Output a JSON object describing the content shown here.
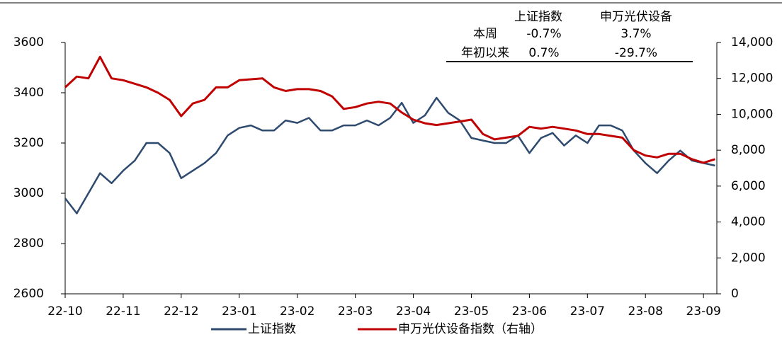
{
  "chart_data": {
    "type": "line",
    "xlim": [
      0,
      11.23
    ],
    "xticks": [
      {
        "value": 0,
        "label": "22-10"
      },
      {
        "value": 1,
        "label": "22-11"
      },
      {
        "value": 2,
        "label": "22-12"
      },
      {
        "value": 3,
        "label": "23-01"
      },
      {
        "value": 4,
        "label": "23-02"
      },
      {
        "value": 5,
        "label": "23-03"
      },
      {
        "value": 6,
        "label": "23-04"
      },
      {
        "value": 7,
        "label": "23-05"
      },
      {
        "value": 8,
        "label": "23-06"
      },
      {
        "value": 9,
        "label": "23-07"
      },
      {
        "value": 10,
        "label": "23-08"
      },
      {
        "value": 11,
        "label": "23-09"
      }
    ],
    "ylim": [
      2600,
      3600
    ],
    "yticks": [
      2600,
      2800,
      3000,
      3200,
      3400,
      3600
    ],
    "y2lim": [
      0,
      14000
    ],
    "y2ticks": [
      0,
      {
        "value": 2000,
        "label": "2,000"
      },
      {
        "value": 4000,
        "label": "4,000"
      },
      {
        "value": 6000,
        "label": "6,000"
      },
      {
        "value": 8000,
        "label": "8,000"
      },
      {
        "value": 10000,
        "label": "10,000"
      },
      {
        "value": 12000,
        "label": "12,000"
      },
      {
        "value": 14000,
        "label": "14,000"
      }
    ],
    "x": [
      0,
      0.2,
      0.4,
      0.6,
      0.8,
      1.0,
      1.2,
      1.4,
      1.6,
      1.8,
      2.0,
      2.2,
      2.4,
      2.6,
      2.8,
      3.0,
      3.2,
      3.4,
      3.6,
      3.8,
      4.0,
      4.2,
      4.4,
      4.6,
      4.8,
      5.0,
      5.2,
      5.4,
      5.6,
      5.8,
      6.0,
      6.2,
      6.4,
      6.6,
      6.8,
      7.0,
      7.2,
      7.4,
      7.6,
      7.8,
      8.0,
      8.2,
      8.4,
      8.6,
      8.8,
      9.0,
      9.2,
      9.4,
      9.6,
      9.8,
      10.0,
      10.2,
      10.4,
      10.6,
      10.8,
      11.0,
      11.2
    ],
    "series": [
      {
        "name": "上证指数",
        "color": "#2e4a6e",
        "values": [
          2980,
          2920,
          3000,
          3080,
          3040,
          3090,
          3130,
          3200,
          3200,
          3160,
          3060,
          3090,
          3120,
          3160,
          3230,
          3260,
          3270,
          3250,
          3250,
          3290,
          3280,
          3300,
          3250,
          3250,
          3270,
          3270,
          3290,
          3270,
          3300,
          3360,
          3280,
          3310,
          3380,
          3320,
          3290,
          3220,
          3210,
          3200,
          3200,
          3230,
          3160,
          3220,
          3240,
          3190,
          3230,
          3200,
          3270,
          3270,
          3250,
          3170,
          3120,
          3080,
          3130,
          3170,
          3130,
          3120,
          3110
        ]
      },
      {
        "name": "申万光伏设备指数（右轴）",
        "color": "#c00000",
        "axis": "y2",
        "values": [
          11500,
          12100,
          12000,
          13200,
          12000,
          11900,
          11700,
          11500,
          11200,
          10800,
          9900,
          10600,
          10800,
          11500,
          11500,
          11900,
          11950,
          12000,
          11500,
          11300,
          11400,
          11400,
          11300,
          11000,
          10300,
          10400,
          10600,
          10700,
          10600,
          10100,
          9700,
          9500,
          9400,
          9500,
          9600,
          9700,
          8900,
          8600,
          8700,
          8800,
          9300,
          9200,
          9300,
          9200,
          9100,
          8900,
          8900,
          8800,
          8700,
          8000,
          7700,
          7600,
          7800,
          7800,
          7500,
          7300,
          7500
        ]
      }
    ],
    "table": {
      "columns": [
        "上证指数",
        "申万光伏设备"
      ],
      "rows": [
        [
          "本周",
          "-0.7%",
          "3.7%"
        ],
        [
          "年初以来",
          "0.7%",
          "-29.7%"
        ]
      ]
    }
  }
}
